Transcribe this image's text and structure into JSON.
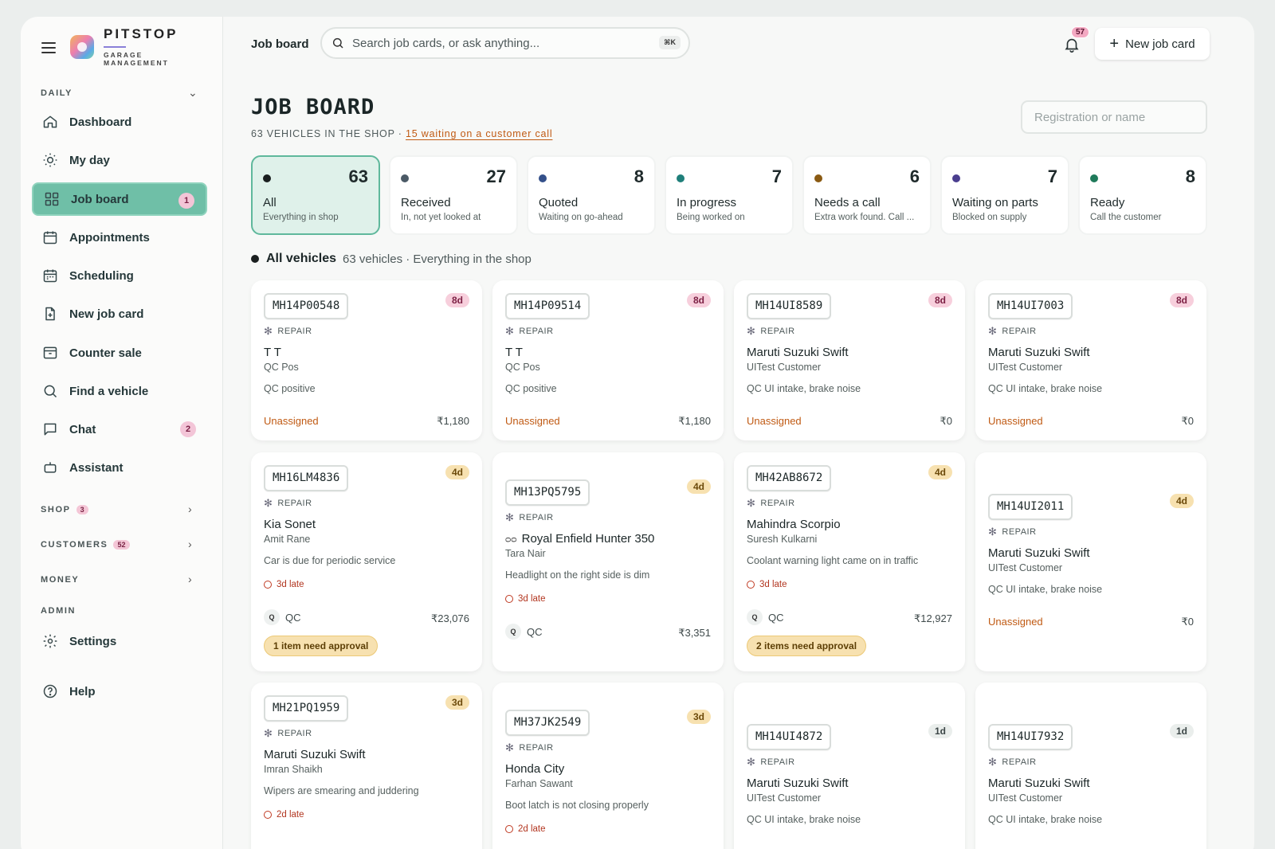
{
  "brand": {
    "name": "PITSTOP",
    "subtitle": "GARAGE MANAGEMENT"
  },
  "sidebar": {
    "daily_label": "DAILY",
    "items": [
      {
        "label": "Dashboard",
        "icon": "home-icon"
      },
      {
        "label": "My day",
        "icon": "sun-icon"
      },
      {
        "label": "Job board",
        "icon": "grid-icon",
        "badge": "1",
        "active": true
      },
      {
        "label": "Appointments",
        "icon": "calendar-icon"
      },
      {
        "label": "Scheduling",
        "icon": "calendar-grid-icon"
      },
      {
        "label": "New job card",
        "icon": "file-plus-icon"
      },
      {
        "label": "Counter sale",
        "icon": "archive-icon"
      },
      {
        "label": "Find a vehicle",
        "icon": "search-icon"
      },
      {
        "label": "Chat",
        "icon": "chat-icon",
        "badge": "2"
      },
      {
        "label": "Assistant",
        "icon": "robot-icon"
      }
    ],
    "sections": [
      {
        "label": "SHOP",
        "badge": "3"
      },
      {
        "label": "CUSTOMERS",
        "badge": "52"
      },
      {
        "label": "MONEY",
        "badge": ""
      }
    ],
    "admin_label": "ADMIN",
    "settings_label": "Settings",
    "help_label": "Help"
  },
  "topbar": {
    "title": "Job board",
    "search_placeholder": "Search job cards, or ask anything...",
    "search_shortcut": "⌘K",
    "notification_count": "57",
    "new_button_label": "New job card"
  },
  "page": {
    "title": "JOB BOARD",
    "subtitle": "63 VEHICLES IN THE SHOP · ",
    "subtitle_link": "15 waiting on a customer call",
    "reg_placeholder": "Registration or name"
  },
  "colors": {
    "accent": "#6fbfa7",
    "late": "#b23620",
    "unassigned": "#c05a13"
  },
  "stats": [
    {
      "count": "63",
      "label": "All",
      "desc": "Everything in shop",
      "dot": "#1a1f1f",
      "active": true
    },
    {
      "count": "27",
      "label": "Received",
      "desc": "In, not yet looked at",
      "dot": "#4b5a66"
    },
    {
      "count": "8",
      "label": "Quoted",
      "desc": "Waiting on go-ahead",
      "dot": "#34508a"
    },
    {
      "count": "7",
      "label": "In progress",
      "desc": "Being worked on",
      "dot": "#1f7f7a"
    },
    {
      "count": "6",
      "label": "Needs a call",
      "desc": "Extra work found. Call ...",
      "dot": "#8a5a12"
    },
    {
      "count": "7",
      "label": "Waiting on parts",
      "desc": "Blocked on supply",
      "dot": "#4a3e8f"
    },
    {
      "count": "8",
      "label": "Ready",
      "desc": "Call the customer",
      "dot": "#1f7a5a"
    }
  ],
  "group": {
    "name": "All vehicles",
    "meta": "63 vehicles · Everything in the shop"
  },
  "cards": [
    {
      "plate": "MH14P00548",
      "age": "8d",
      "type": "REPAIR",
      "vehicle": "T T",
      "owner": "QC Pos",
      "issue": "QC positive",
      "late": "",
      "assignee": "Unassigned",
      "tech": "",
      "amount": "₹1,180",
      "approval": ""
    },
    {
      "plate": "MH14P09514",
      "age": "8d",
      "type": "REPAIR",
      "vehicle": "T T",
      "owner": "QC Pos",
      "issue": "QC positive",
      "late": "",
      "assignee": "Unassigned",
      "tech": "",
      "amount": "₹1,180",
      "approval": ""
    },
    {
      "plate": "MH14UI8589",
      "age": "8d",
      "type": "REPAIR",
      "vehicle": "Maruti Suzuki Swift",
      "owner": "UITest Customer",
      "issue": "QC UI intake, brake noise",
      "late": "",
      "assignee": "Unassigned",
      "tech": "",
      "amount": "₹0",
      "approval": ""
    },
    {
      "plate": "MH14UI7003",
      "age": "8d",
      "type": "REPAIR",
      "vehicle": "Maruti Suzuki Swift",
      "owner": "UITest Customer",
      "issue": "QC UI intake, brake noise",
      "late": "",
      "assignee": "Unassigned",
      "tech": "",
      "amount": "₹0",
      "approval": ""
    },
    {
      "plate": "MH16LM4836",
      "age": "4d",
      "type": "REPAIR",
      "vehicle": "Kia Sonet",
      "owner": "Amit Rane",
      "issue": "Car is due for periodic service",
      "late": "3d late",
      "assignee": "",
      "tech": "QC",
      "amount": "₹23,076",
      "approval": "1 item need approval"
    },
    {
      "plate": "MH13PQ5795",
      "age": "4d",
      "type": "REPAIR",
      "vehicle": "Royal Enfield Hunter 350",
      "owner": "Tara Nair",
      "issue": "Headlight on the right side is dim",
      "late": "3d late",
      "assignee": "",
      "tech": "QC",
      "amount": "₹3,351",
      "approval": "",
      "bike": true
    },
    {
      "plate": "MH42AB8672",
      "age": "4d",
      "type": "REPAIR",
      "vehicle": "Mahindra Scorpio",
      "owner": "Suresh Kulkarni",
      "issue": "Coolant warning light came on in traffic",
      "late": "3d late",
      "assignee": "",
      "tech": "QC",
      "amount": "₹12,927",
      "approval": "2 items need approval"
    },
    {
      "plate": "MH14UI2011",
      "age": "4d",
      "type": "REPAIR",
      "vehicle": "Maruti Suzuki Swift",
      "owner": "UITest Customer",
      "issue": "QC UI intake, brake noise",
      "late": "",
      "assignee": "Unassigned",
      "tech": "",
      "amount": "₹0",
      "approval": ""
    },
    {
      "plate": "MH21PQ1959",
      "age": "3d",
      "type": "REPAIR",
      "vehicle": "Maruti Suzuki Swift",
      "owner": "Imran Shaikh",
      "issue": "Wipers are smearing and juddering",
      "late": "2d late",
      "assignee": "",
      "tech": "",
      "amount": "",
      "approval": ""
    },
    {
      "plate": "MH37JK2549",
      "age": "3d",
      "type": "REPAIR",
      "vehicle": "Honda City",
      "owner": "Farhan Sawant",
      "issue": "Boot latch is not closing properly",
      "late": "2d late",
      "assignee": "",
      "tech": "",
      "amount": "",
      "approval": ""
    },
    {
      "plate": "MH14UI4872",
      "age": "1d",
      "type": "REPAIR",
      "vehicle": "Maruti Suzuki Swift",
      "owner": "UITest Customer",
      "issue": "QC UI intake, brake noise",
      "late": "",
      "assignee": "",
      "tech": "",
      "amount": "",
      "approval": ""
    },
    {
      "plate": "MH14UI7932",
      "age": "1d",
      "type": "REPAIR",
      "vehicle": "Maruti Suzuki Swift",
      "owner": "UITest Customer",
      "issue": "QC UI intake, brake noise",
      "late": "",
      "assignee": "",
      "tech": "",
      "amount": "",
      "approval": ""
    }
  ]
}
